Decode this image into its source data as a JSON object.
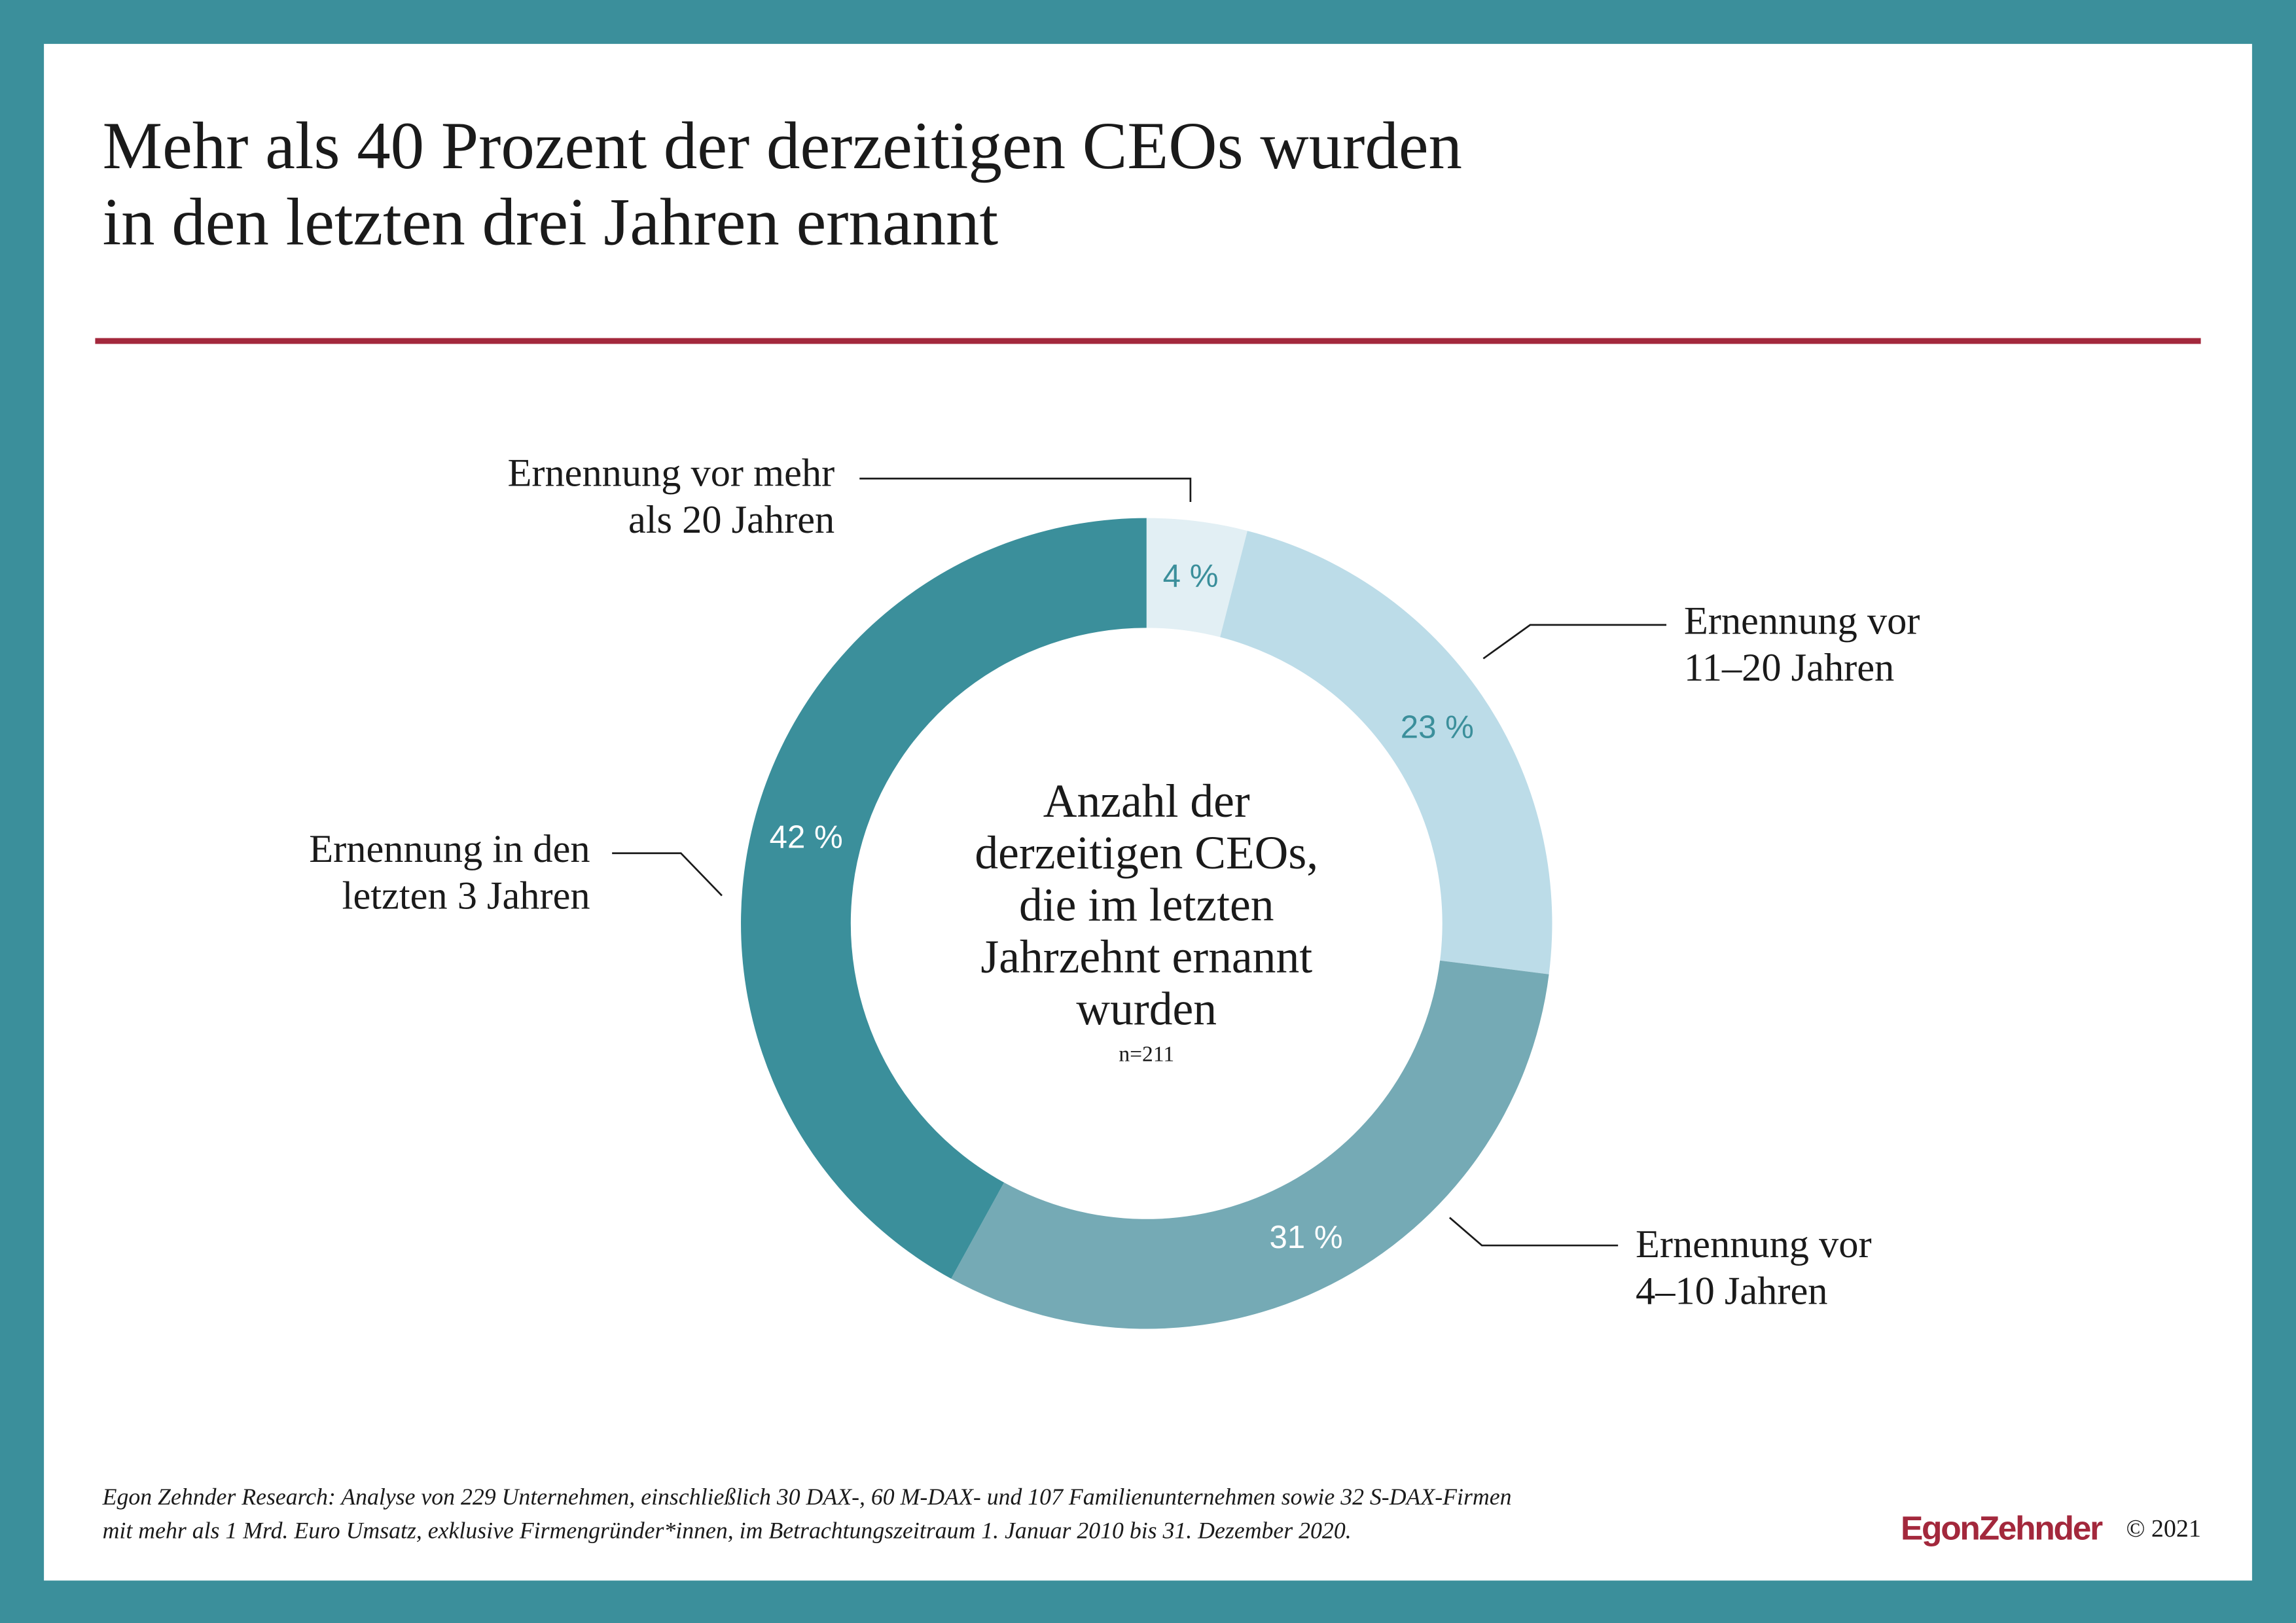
{
  "chart_data": {
    "type": "pie",
    "title": [
      "Mehr als 40 Prozent der derzeitigen CEOs wurden",
      "in den letzten drei Jahren ernannt"
    ],
    "categories": [
      [
        "Ernennung vor mehr",
        "als 20 Jahren"
      ],
      [
        "Ernennung vor",
        "11–20 Jahren"
      ],
      [
        "Ernennung vor",
        "4–10 Jahren"
      ],
      [
        "Ernennung in den",
        "letzten 3 Jahren"
      ]
    ],
    "values": [
      4,
      23,
      31,
      42
    ],
    "value_labels": [
      "4 %",
      "23 %",
      "31 %",
      "42 %"
    ],
    "colors": [
      "#e2eff4",
      "#bcdce8",
      "#75aab5",
      "#3b8f9b"
    ],
    "center_text": [
      "Anzahl der",
      "derzeitigen CEOs,",
      "die im letzten",
      "Jahrzehnt ernannt",
      "wurden"
    ],
    "center_note": "n=211",
    "footnote": [
      "Egon Zehnder Research: Analyse von 229 Unternehmen, einschließlich 30 DAX-, 60 M-DAX- und 107 Familienunternehmen sowie 32 S-DAX-Firmen",
      "mit mehr als 1 Mrd. Euro Umsatz, exklusive Firmengründer*innen, im Betrachtungszeitraum 1. Januar 2010 bis 31. Dezember 2020."
    ],
    "brand": "EgonZehnder",
    "copyright": "© 2021"
  }
}
